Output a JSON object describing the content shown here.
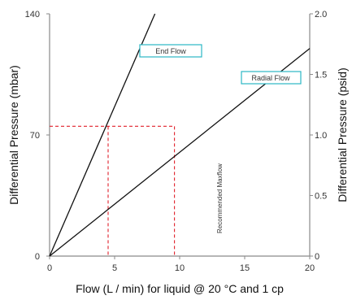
{
  "chart_data": {
    "type": "line",
    "title": "",
    "xlabel": "Flow (L / min) for liquid @ 20 °C and 1 cp",
    "ylabel_left": "Differential Pressure (mbar)",
    "ylabel_right": "Differential Pressure (psid)",
    "xlim": [
      0,
      20
    ],
    "ylim_left": [
      0,
      140
    ],
    "ylim_right": [
      0,
      2.0
    ],
    "x_ticks": [
      "0",
      "5",
      "10",
      "15",
      "20"
    ],
    "y_left_ticks": [
      "0",
      "70",
      "140"
    ],
    "y_right_ticks": [
      "0",
      "0.5",
      "1.0",
      "1.5",
      "2.0"
    ],
    "grid": false,
    "series": [
      {
        "name": "End Flow",
        "x": [
          0,
          8.1
        ],
        "y": [
          0,
          140
        ]
      },
      {
        "name": "Radial Flow",
        "x": [
          0,
          20
        ],
        "y": [
          0,
          120
        ]
      }
    ],
    "reference_lines": {
      "horizontal_y": 75,
      "vertical_x": [
        4.5,
        9.6
      ]
    },
    "annotation": "Recommended Maxflow",
    "colors": {
      "series": "#111111",
      "reference": "#e0202a",
      "label_box_border": "#2bb7c4",
      "axis": "#8a8a8a"
    }
  }
}
